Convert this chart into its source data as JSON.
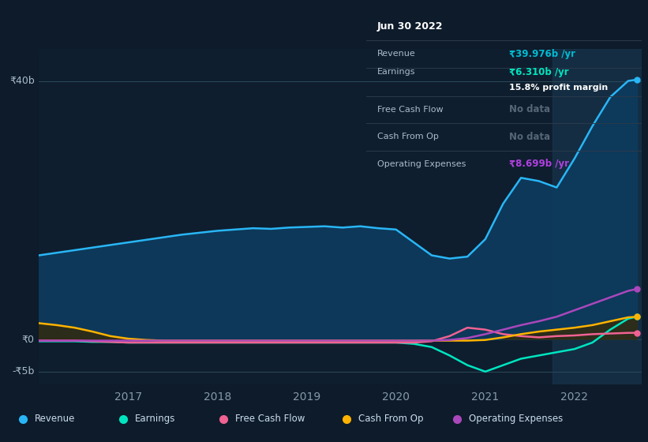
{
  "bg_color": "#0d1b2a",
  "plot_bg_color": "#0e1e2e",
  "highlight_bg": "#1a3a55",
  "title_box": {
    "date": "Jun 30 2022",
    "rows": [
      {
        "label": "Revenue",
        "value": "₹39.976b /yr",
        "value_color": "#00bcd4",
        "sub": null
      },
      {
        "label": "Earnings",
        "value": "₹6.310b /yr",
        "value_color": "#00e5c0",
        "sub": "15.8% profit margin"
      },
      {
        "label": "Free Cash Flow",
        "value": "No data",
        "value_color": "#556677",
        "sub": null
      },
      {
        "label": "Cash From Op",
        "value": "No data",
        "value_color": "#556677",
        "sub": null
      },
      {
        "label": "Operating Expenses",
        "value": "₹8.699b /yr",
        "value_color": "#b040e0",
        "sub": null
      }
    ]
  },
  "x_labels": [
    "2017",
    "2018",
    "2019",
    "2020",
    "2021",
    "2022"
  ],
  "x_ticks": [
    2017,
    2018,
    2019,
    2020,
    2021,
    2022
  ],
  "highlight_x_start": 2021.75,
  "ylim": [
    -7,
    45
  ],
  "xlim": [
    2016.0,
    2022.75
  ],
  "y_label_positions": [
    {
      "y": 40,
      "label": "₹40b"
    },
    {
      "y": 0,
      "label": "₹0"
    },
    {
      "y": -5,
      "label": "-₹5b"
    }
  ],
  "series": {
    "Revenue": {
      "color": "#29b6f6",
      "fill_color": "#0d3b5e",
      "x": [
        2016.0,
        2016.2,
        2016.4,
        2016.6,
        2016.8,
        2017.0,
        2017.2,
        2017.4,
        2017.6,
        2017.8,
        2018.0,
        2018.2,
        2018.4,
        2018.6,
        2018.8,
        2019.0,
        2019.2,
        2019.4,
        2019.6,
        2019.8,
        2020.0,
        2020.2,
        2020.4,
        2020.6,
        2020.8,
        2021.0,
        2021.2,
        2021.4,
        2021.6,
        2021.8,
        2022.0,
        2022.2,
        2022.4,
        2022.6,
        2022.7
      ],
      "y": [
        13.0,
        13.4,
        13.8,
        14.2,
        14.6,
        15.0,
        15.4,
        15.8,
        16.2,
        16.5,
        16.8,
        17.0,
        17.2,
        17.1,
        17.3,
        17.4,
        17.5,
        17.3,
        17.5,
        17.2,
        17.0,
        15.0,
        13.0,
        12.5,
        12.8,
        15.5,
        21.0,
        25.0,
        24.5,
        23.5,
        28.0,
        33.0,
        37.5,
        40.0,
        40.2
      ]
    },
    "Earnings": {
      "color": "#00e5c0",
      "x": [
        2016.0,
        2016.2,
        2016.4,
        2016.6,
        2016.8,
        2017.0,
        2017.2,
        2017.4,
        2017.6,
        2017.8,
        2018.0,
        2018.2,
        2018.4,
        2018.6,
        2018.8,
        2019.0,
        2019.2,
        2019.4,
        2019.6,
        2019.8,
        2020.0,
        2020.2,
        2020.4,
        2020.6,
        2020.8,
        2021.0,
        2021.2,
        2021.4,
        2021.6,
        2021.8,
        2022.0,
        2022.2,
        2022.4,
        2022.6,
        2022.7
      ],
      "y": [
        -0.3,
        -0.3,
        -0.3,
        -0.4,
        -0.4,
        -0.5,
        -0.5,
        -0.5,
        -0.5,
        -0.5,
        -0.5,
        -0.5,
        -0.5,
        -0.5,
        -0.5,
        -0.5,
        -0.5,
        -0.5,
        -0.5,
        -0.5,
        -0.5,
        -0.7,
        -1.2,
        -2.5,
        -4.0,
        -5.0,
        -4.0,
        -3.0,
        -2.5,
        -2.0,
        -1.5,
        -0.5,
        1.5,
        3.2,
        3.5
      ]
    },
    "FreeCashFlow": {
      "color": "#f06292",
      "x": [
        2016.0,
        2016.2,
        2016.4,
        2016.6,
        2016.8,
        2017.0,
        2017.2,
        2017.4,
        2017.6,
        2017.8,
        2018.0,
        2018.2,
        2018.4,
        2018.6,
        2018.8,
        2019.0,
        2019.2,
        2019.4,
        2019.6,
        2019.8,
        2020.0,
        2020.2,
        2020.4,
        2020.6,
        2020.8,
        2021.0,
        2021.2,
        2021.4,
        2021.6,
        2021.8,
        2022.0,
        2022.2,
        2022.4,
        2022.6,
        2022.7
      ],
      "y": [
        -0.2,
        -0.2,
        -0.2,
        -0.3,
        -0.4,
        -0.5,
        -0.5,
        -0.5,
        -0.5,
        -0.5,
        -0.5,
        -0.5,
        -0.5,
        -0.5,
        -0.5,
        -0.5,
        -0.5,
        -0.5,
        -0.5,
        -0.5,
        -0.5,
        -0.5,
        -0.3,
        0.5,
        1.8,
        1.5,
        0.8,
        0.5,
        0.3,
        0.5,
        0.6,
        0.8,
        0.9,
        1.0,
        1.0
      ]
    },
    "CashFromOp": {
      "color": "#ffb300",
      "fill_color": "#3a2800",
      "x": [
        2016.0,
        2016.2,
        2016.4,
        2016.6,
        2016.8,
        2017.0,
        2017.2,
        2017.4,
        2017.6,
        2017.8,
        2018.0,
        2018.2,
        2018.4,
        2018.6,
        2018.8,
        2019.0,
        2019.2,
        2019.4,
        2019.6,
        2019.8,
        2020.0,
        2020.2,
        2020.4,
        2020.6,
        2020.8,
        2021.0,
        2021.2,
        2021.4,
        2021.6,
        2021.8,
        2022.0,
        2022.2,
        2022.4,
        2022.6,
        2022.7
      ],
      "y": [
        2.5,
        2.2,
        1.8,
        1.2,
        0.5,
        0.1,
        -0.1,
        -0.2,
        -0.2,
        -0.2,
        -0.2,
        -0.2,
        -0.2,
        -0.2,
        -0.2,
        -0.2,
        -0.2,
        -0.2,
        -0.2,
        -0.2,
        -0.2,
        -0.2,
        -0.2,
        -0.2,
        -0.2,
        -0.1,
        0.3,
        0.8,
        1.2,
        1.5,
        1.8,
        2.2,
        2.8,
        3.4,
        3.5
      ]
    },
    "OperatingExpenses": {
      "color": "#ab47bc",
      "x": [
        2016.0,
        2016.2,
        2016.4,
        2016.6,
        2016.8,
        2017.0,
        2017.2,
        2017.4,
        2017.6,
        2017.8,
        2018.0,
        2018.2,
        2018.4,
        2018.6,
        2018.8,
        2019.0,
        2019.2,
        2019.4,
        2019.6,
        2019.8,
        2020.0,
        2020.2,
        2020.4,
        2020.6,
        2020.8,
        2021.0,
        2021.2,
        2021.4,
        2021.6,
        2021.8,
        2022.0,
        2022.2,
        2022.4,
        2022.6,
        2022.7
      ],
      "y": [
        -0.2,
        -0.2,
        -0.2,
        -0.2,
        -0.2,
        -0.2,
        -0.2,
        -0.2,
        -0.2,
        -0.2,
        -0.2,
        -0.2,
        -0.2,
        -0.2,
        -0.2,
        -0.2,
        -0.2,
        -0.2,
        -0.2,
        -0.2,
        -0.2,
        -0.2,
        -0.2,
        -0.1,
        0.2,
        0.8,
        1.5,
        2.2,
        2.8,
        3.5,
        4.5,
        5.5,
        6.5,
        7.5,
        7.8
      ]
    }
  },
  "legend": [
    {
      "label": "Revenue",
      "color": "#29b6f6"
    },
    {
      "label": "Earnings",
      "color": "#00e5c0"
    },
    {
      "label": "Free Cash Flow",
      "color": "#f06292"
    },
    {
      "label": "Cash From Op",
      "color": "#ffb300"
    },
    {
      "label": "Operating Expenses",
      "color": "#ab47bc"
    }
  ]
}
